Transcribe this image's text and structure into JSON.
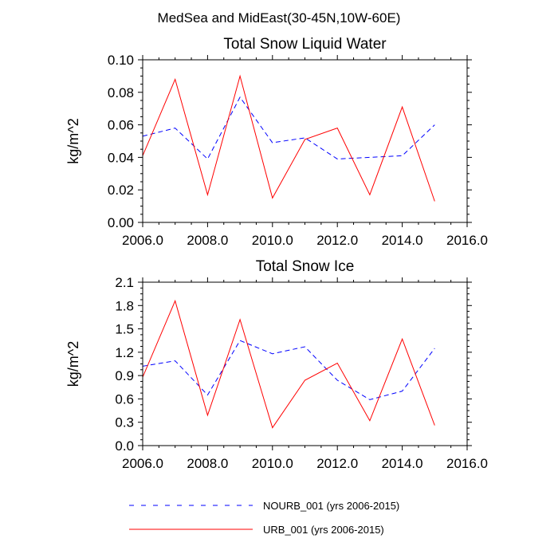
{
  "figure": {
    "suptitle": "MedSea and MidEast(30-45N,10W-60E)"
  },
  "chart_data": [
    {
      "type": "line",
      "title": "Total Snow Liquid Water",
      "xlabel": "",
      "ylabel": "kg/m^2",
      "xlim": [
        2006.0,
        2016.0
      ],
      "ylim": [
        0.0,
        0.1
      ],
      "x_ticks": [
        "2006.0",
        "2008.0",
        "2010.0",
        "2012.0",
        "2014.0",
        "2016.0"
      ],
      "y_ticks": [
        "0.00",
        "0.02",
        "0.04",
        "0.06",
        "0.08",
        "0.10"
      ],
      "x": [
        2006,
        2007,
        2008,
        2009,
        2010,
        2011,
        2012,
        2013,
        2014,
        2015
      ],
      "series": [
        {
          "name": "NOURB_001 (yrs 2006-2015)",
          "color": "#0000ff",
          "style": "dashed",
          "values": [
            0.053,
            0.058,
            0.039,
            0.077,
            0.049,
            0.052,
            0.039,
            0.04,
            0.041,
            0.06
          ]
        },
        {
          "name": "URB_001 (yrs 2006-2015)",
          "color": "#ff0000",
          "style": "solid",
          "values": [
            0.041,
            0.088,
            0.017,
            0.09,
            0.015,
            0.051,
            0.058,
            0.017,
            0.071,
            0.013
          ]
        }
      ]
    },
    {
      "type": "line",
      "title": "Total Snow Ice",
      "xlabel": "",
      "ylabel": "kg/m^2",
      "xlim": [
        2006.0,
        2016.0
      ],
      "ylim": [
        0.0,
        2.1
      ],
      "x_ticks": [
        "2006.0",
        "2008.0",
        "2010.0",
        "2012.0",
        "2014.0",
        "2016.0"
      ],
      "y_ticks": [
        "0.0",
        "0.3",
        "0.6",
        "0.9",
        "1.2",
        "1.5",
        "1.8",
        "2.1"
      ],
      "x": [
        2006,
        2007,
        2008,
        2009,
        2010,
        2011,
        2012,
        2013,
        2014,
        2015
      ],
      "series": [
        {
          "name": "NOURB_001 (yrs 2006-2015)",
          "color": "#0000ff",
          "style": "dashed",
          "values": [
            1.02,
            1.09,
            0.65,
            1.35,
            1.18,
            1.27,
            0.84,
            0.59,
            0.7,
            1.25
          ]
        },
        {
          "name": "URB_001 (yrs 2006-2015)",
          "color": "#ff0000",
          "style": "solid",
          "values": [
            0.88,
            1.86,
            0.39,
            1.62,
            0.23,
            0.84,
            1.06,
            0.32,
            1.37,
            0.26
          ]
        }
      ]
    }
  ],
  "legend": {
    "placement": "bottom",
    "entries": [
      {
        "label": "NOURB_001 (yrs 2006-2015)",
        "color": "#0000ff",
        "style": "dashed"
      },
      {
        "label": "URB_001 (yrs 2006-2015)",
        "color": "#ff0000",
        "style": "solid"
      }
    ]
  }
}
